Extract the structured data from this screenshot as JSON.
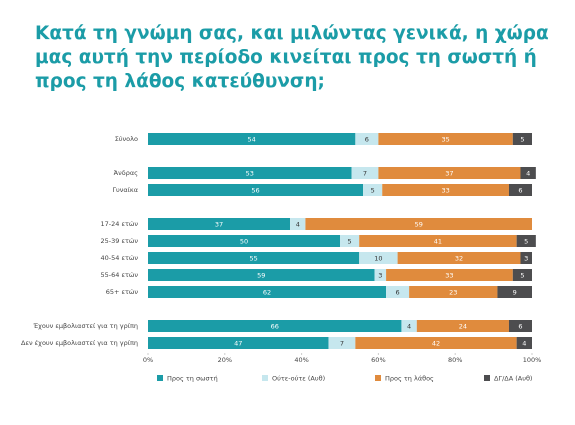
{
  "chart_data": {
    "type": "stacked-bar-horizontal",
    "title": "Κατά τη γνώμη σας, και μιλώντας γενικά, η χώρα μας αυτή την περίοδο κινείται προς τη σωστή ή προς τη λάθος κατεύθυνση;",
    "categories": [
      "Σύνολο",
      null,
      "Άνδρας",
      "Γυναίκα",
      null,
      "17-24 ετών",
      "25-39 ετών",
      "40-54 ετών",
      "55-64 ετών",
      "65+ ετών",
      null,
      "Έχουν εμβολιαστεί για τη γρίπη",
      "Δεν έχουν εμβολιαστεί για τη γρίπη"
    ],
    "series": [
      {
        "name": "Προς τη σωστή",
        "color": "#1b9ca7",
        "values": [
          54,
          null,
          53,
          56,
          null,
          37,
          50,
          55,
          59,
          62,
          null,
          66,
          47
        ]
      },
      {
        "name": "Ούτε-ούτε (Αυθ)",
        "color": "#c6e7ee",
        "values": [
          6,
          null,
          7,
          5,
          null,
          4,
          5,
          10,
          3,
          6,
          null,
          4,
          7
        ]
      },
      {
        "name": "Προς τη λάθος",
        "color": "#e08b3d",
        "values": [
          35,
          null,
          37,
          33,
          null,
          59,
          41,
          32,
          33,
          23,
          null,
          24,
          42
        ]
      },
      {
        "name": "ΔΓ/ΔΑ (Αυθ)",
        "color": "#4d4d4f",
        "values": [
          5,
          null,
          4,
          6,
          null,
          null,
          5,
          3,
          5,
          9,
          null,
          6,
          4
        ]
      }
    ],
    "xlim": [
      0,
      100
    ],
    "xticks": [
      {
        "value": 0,
        "label": "0%"
      },
      {
        "value": 20,
        "label": "20%"
      },
      {
        "value": 40,
        "label": "40%"
      },
      {
        "value": 60,
        "label": "60%"
      },
      {
        "value": 80,
        "label": "80%"
      },
      {
        "value": 100,
        "label": "100%"
      }
    ]
  }
}
